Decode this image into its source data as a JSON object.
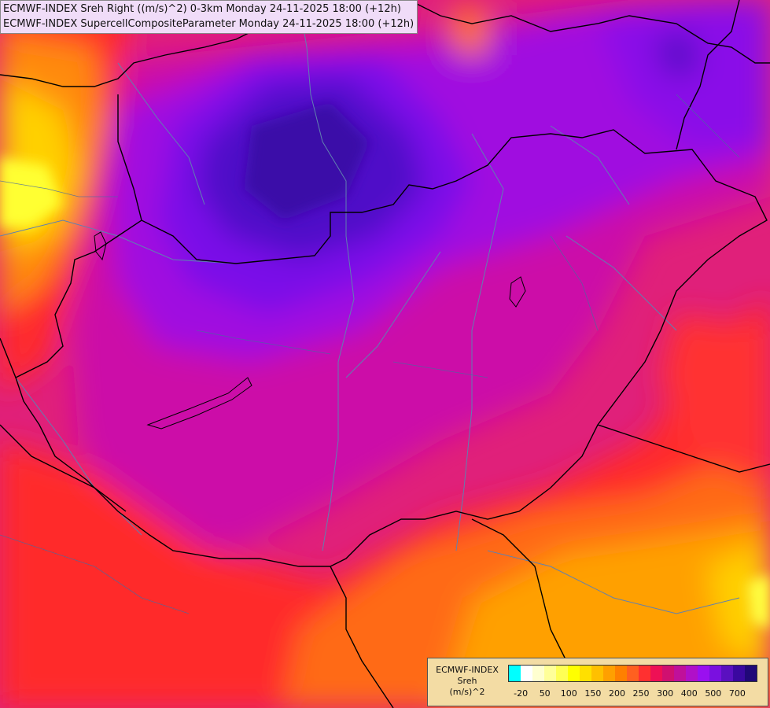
{
  "header": {
    "line1": "ECMWF-INDEX Sreh Right ((m/s)^2) 0-3km Monday 24-11-2025 18:00 (+12h)",
    "line2": "ECMWF-INDEX SupercellCompositeParameter Monday 24-11-2025 18:00 (+12h)"
  },
  "legend": {
    "title_line1": "ECMWF-INDEX",
    "title_line2": "Sreh",
    "title_line3": "(m/s)^2",
    "swatch_colors": [
      "#00ffff",
      "#ffffff",
      "#ffffd0",
      "#ffff99",
      "#ffff55",
      "#ffff00",
      "#ffe000",
      "#ffc000",
      "#ffa000",
      "#ff8000",
      "#ff6020",
      "#ff3030",
      "#ee1055",
      "#d01070",
      "#c0109a",
      "#b010c8",
      "#9a10f0",
      "#7a10e0",
      "#5a10c0",
      "#3a08a0",
      "#200878"
    ],
    "ticks": [
      {
        "label": "-20",
        "frac": 0.05
      },
      {
        "label": "50",
        "frac": 0.145
      },
      {
        "label": "100",
        "frac": 0.24
      },
      {
        "label": "150",
        "frac": 0.335
      },
      {
        "label": "200",
        "frac": 0.43
      },
      {
        "label": "250",
        "frac": 0.525
      },
      {
        "label": "300",
        "frac": 0.62
      },
      {
        "label": "400",
        "frac": 0.715
      },
      {
        "label": "500",
        "frac": 0.81
      },
      {
        "label": "700",
        "frac": 0.905
      }
    ]
  }
}
